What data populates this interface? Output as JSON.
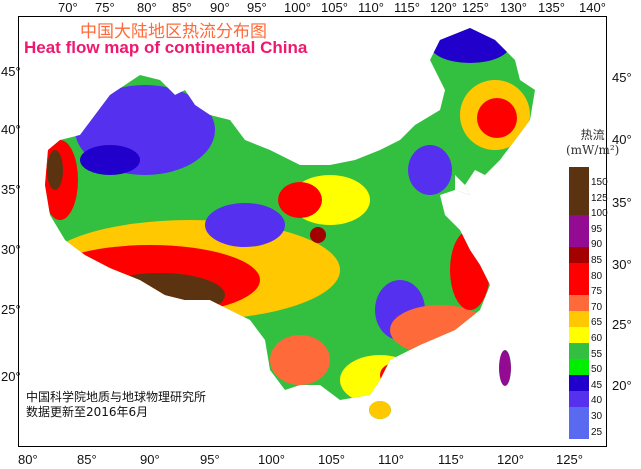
{
  "title_cn": "中国大陆地区热流分布图",
  "title_en": "Heat flow map of continental China",
  "credit": [
    "中国科学院地质与地球物理研究所",
    "数据更新至2016年6月"
  ],
  "axes": {
    "top": [
      "70°",
      "75°",
      "80°",
      "85°",
      "90°",
      "95°",
      "100°",
      "105°",
      "110°",
      "115°",
      "120°",
      "125°",
      "130°",
      "135°",
      "140°"
    ],
    "bottom": [
      "80°",
      "85°",
      "90°",
      "95°",
      "100°",
      "105°",
      "110°",
      "115°",
      "120°",
      "125°"
    ],
    "left": [
      "45°",
      "40°",
      "35°",
      "30°",
      "25°",
      "20°"
    ],
    "right": [
      "45°",
      "40°",
      "35°",
      "30°",
      "25°",
      "20°"
    ]
  },
  "legend": {
    "title": "热流",
    "unit": "(mW/m²)",
    "labels": [
      "150",
      "125",
      "100",
      "95",
      "90",
      "85",
      "80",
      "75",
      "70",
      "65",
      "60",
      "55",
      "50",
      "45",
      "40",
      "30",
      "25"
    ],
    "colors": [
      "#5c3310",
      "#5c3310",
      "#5c3310",
      "#930a93",
      "#930a93",
      "#a30000",
      "#ff0000",
      "#ff0000",
      "#ff6a3a",
      "#ffc800",
      "#ffff00",
      "#33c040",
      "#00ee00",
      "#2200cc",
      "#5530ee",
      "#5a6af0",
      "#5a6af0"
    ]
  }
}
